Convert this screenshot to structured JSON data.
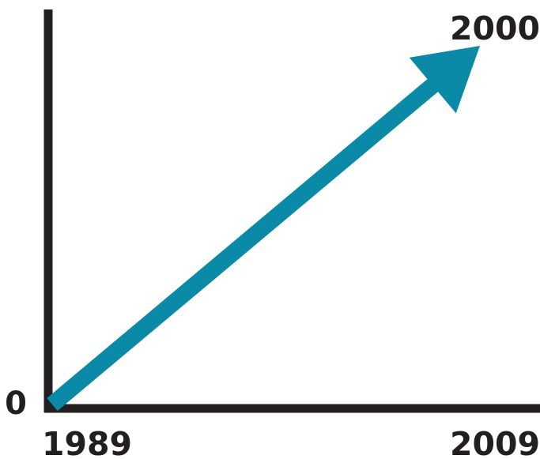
{
  "chart_data": {
    "type": "line",
    "x": [
      1989,
      2009
    ],
    "y": [
      0,
      2000
    ],
    "xlim": [
      1989,
      2009
    ],
    "ylim": [
      0,
      2000
    ],
    "x_tick_labels": [
      "1989",
      "2009"
    ],
    "y_tick_labels": [
      "0"
    ],
    "end_value_label": "2000",
    "marker": "arrow",
    "grid": false,
    "colors": {
      "line": "#0a8aa6",
      "axes": "#231f20",
      "text": "#231f20"
    }
  }
}
